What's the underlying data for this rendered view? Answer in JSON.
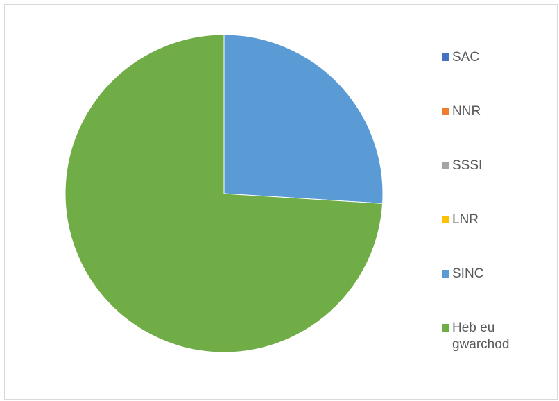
{
  "chart_data": {
    "type": "pie",
    "categories": [
      "SAC",
      "NNR",
      "SSSI",
      "LNR",
      "SINC",
      "Heb eu gwarchod"
    ],
    "values": [
      0,
      0,
      0,
      0,
      26,
      74
    ],
    "colors": [
      "#4472c4",
      "#ed7d31",
      "#a5a5a5",
      "#ffc000",
      "#5b9bd5",
      "#70ad47"
    ],
    "legend_position": "right",
    "start_angle_deg": 0,
    "direction": "clockwise"
  }
}
